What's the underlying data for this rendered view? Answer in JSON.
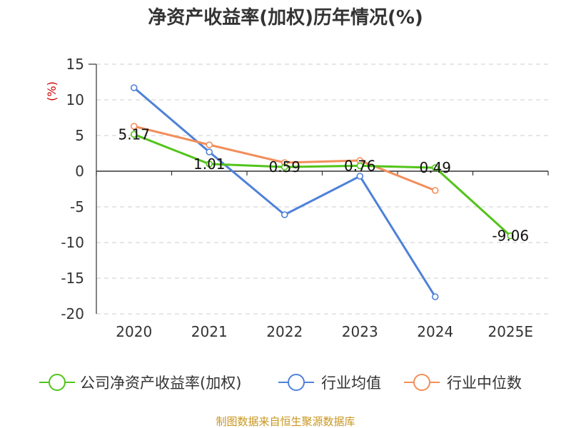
{
  "chart_data": {
    "type": "line",
    "title": "净资产收益率(加权)历年情况(%)",
    "ylabel": "(%)",
    "xlabel": "",
    "categories": [
      "2020",
      "2021",
      "2022",
      "2023",
      "2024",
      "2025E"
    ],
    "ylim": [
      -20,
      15
    ],
    "yticks": [
      15,
      10,
      5,
      0,
      -5,
      -10,
      -15,
      -20
    ],
    "grid": "dashed horizontal",
    "series": [
      {
        "name": "公司净资产收益率(加权)",
        "color": "#52c41a",
        "values": [
          5.17,
          1.01,
          0.59,
          0.76,
          0.49,
          -9.06
        ],
        "labels": [
          "5.17",
          "1.01",
          "0.59",
          "0.76",
          "0.49",
          "-9.06"
        ]
      },
      {
        "name": "行业均值",
        "color": "#4f81d9",
        "values": [
          11.7,
          2.7,
          -6.1,
          -0.7,
          -17.6,
          null
        ]
      },
      {
        "name": "行业中位数",
        "color": "#f28e5a",
        "values": [
          6.3,
          3.7,
          1.2,
          1.5,
          -2.7,
          null
        ]
      }
    ],
    "legend_position": "bottom"
  },
  "source": "制图数据来自恒生聚源数据库",
  "colors": {
    "ylabel": "#cc0000",
    "source": "#c8961e",
    "axis": "#333333",
    "grid": "#cccccc"
  }
}
